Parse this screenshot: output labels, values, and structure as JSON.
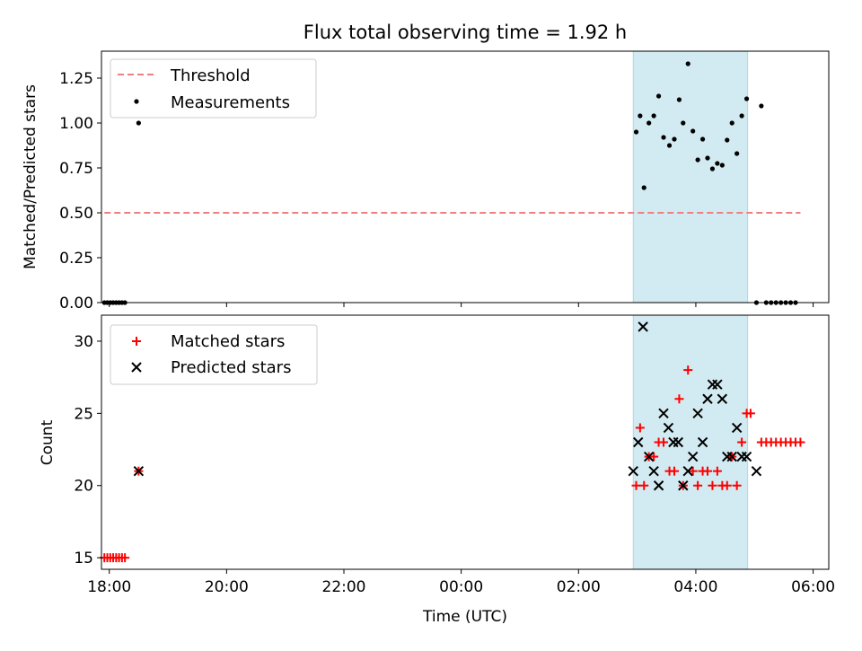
{
  "chart_data": [
    {
      "type": "scatter",
      "title": "Flux total observing time = 1.92 h",
      "ylabel": "Matched/Predicted stars",
      "xlabel": "",
      "ylim": [
        0,
        1.4
      ],
      "xlim": [
        "17:52",
        "06:16"
      ],
      "yticks": [
        0.0,
        0.25,
        0.5,
        0.75,
        1.0,
        1.25
      ],
      "ytick_labels": [
        "0.00",
        "0.25",
        "0.50",
        "0.75",
        "1.00",
        "1.25"
      ],
      "legend_position": "top-left",
      "grid": false,
      "shaded_band": {
        "x": [
          "02:56",
          "04:53"
        ],
        "color": "#add8e6"
      },
      "series": [
        {
          "name": "Threshold",
          "kind": "dashed-line",
          "color": "#f08080",
          "x": [
            "17:55",
            "05:47"
          ],
          "y": [
            0.5,
            0.5
          ]
        },
        {
          "name": "Measurements",
          "kind": "points",
          "color": "#000000",
          "x": [
            "17:55",
            "17:58",
            "18:01",
            "18:04",
            "18:07",
            "18:10",
            "18:13",
            "18:16",
            "18:30",
            "02:59",
            "03:03",
            "03:07",
            "03:12",
            "03:17",
            "03:22",
            "03:27",
            "03:33",
            "03:38",
            "03:43",
            "03:47",
            "03:52",
            "03:57",
            "04:02",
            "04:07",
            "04:12",
            "04:17",
            "04:22",
            "04:27",
            "04:32",
            "04:37",
            "04:42",
            "04:47",
            "04:52",
            "05:02",
            "05:07",
            "05:12",
            "05:17",
            "05:22",
            "05:27",
            "05:32",
            "05:37",
            "05:42"
          ],
          "y": [
            0,
            0,
            0,
            0,
            0,
            0,
            0,
            0,
            1.0,
            0.95,
            1.04,
            0.64,
            1.0,
            1.04,
            1.15,
            0.92,
            0.875,
            0.91,
            1.13,
            1.0,
            1.33,
            0.955,
            0.795,
            0.91,
            0.805,
            0.745,
            0.775,
            0.765,
            0.905,
            1.0,
            0.83,
            1.04,
            1.135,
            0,
            1.095,
            0,
            0,
            0,
            0,
            0,
            0,
            0
          ]
        }
      ]
    },
    {
      "type": "scatter",
      "title": "",
      "ylabel": "Count",
      "xlabel": "Time (UTC)",
      "ylim": [
        14.2,
        31.8
      ],
      "xlim": [
        "17:52",
        "06:16"
      ],
      "yticks": [
        15,
        20,
        25,
        30
      ],
      "ytick_labels": [
        "15",
        "20",
        "25",
        "30"
      ],
      "xtick_labels": [
        "18:00",
        "20:00",
        "22:00",
        "00:00",
        "02:00",
        "04:00",
        "06:00"
      ],
      "legend_position": "top-left",
      "grid": false,
      "shaded_band": {
        "x": [
          "02:56",
          "04:53"
        ],
        "color": "#add8e6"
      },
      "series": [
        {
          "name": "Matched stars",
          "marker": "plus",
          "color": "#ff0000",
          "x": [
            "17:55",
            "17:58",
            "18:01",
            "18:04",
            "18:07",
            "18:10",
            "18:13",
            "18:16",
            "18:30",
            "02:59",
            "03:03",
            "03:07",
            "03:12",
            "03:17",
            "03:22",
            "03:27",
            "03:33",
            "03:38",
            "03:43",
            "03:47",
            "03:52",
            "03:57",
            "04:02",
            "04:07",
            "04:12",
            "04:17",
            "04:22",
            "04:27",
            "04:32",
            "04:37",
            "04:42",
            "04:47",
            "04:52",
            "04:56",
            "05:07",
            "05:12",
            "05:17",
            "05:22",
            "05:27",
            "05:32",
            "05:37",
            "05:42",
            "05:47"
          ],
          "y": [
            15,
            15,
            15,
            15,
            15,
            15,
            15,
            15,
            21,
            20,
            24,
            20,
            22,
            22,
            23,
            23,
            21,
            21,
            26,
            20,
            28,
            21,
            20,
            21,
            21,
            20,
            21,
            20,
            20,
            22,
            20,
            23,
            25,
            25,
            23,
            23,
            23,
            23,
            23,
            23,
            23,
            23,
            23
          ]
        },
        {
          "name": "Predicted stars",
          "marker": "x",
          "color": "#000000",
          "x": [
            "18:30",
            "02:56",
            "03:01",
            "03:06",
            "03:12",
            "03:17",
            "03:22",
            "03:27",
            "03:32",
            "03:37",
            "03:42",
            "03:47",
            "03:52",
            "03:57",
            "04:02",
            "04:07",
            "04:12",
            "04:17",
            "04:22",
            "04:27",
            "04:32",
            "04:37",
            "04:42",
            "04:47",
            "04:52",
            "05:02"
          ],
          "y": [
            21,
            21,
            23,
            31,
            22,
            21,
            20,
            25,
            24,
            23,
            23,
            20,
            21,
            22,
            25,
            23,
            26,
            27,
            27,
            26,
            22,
            22,
            24,
            22,
            22,
            21
          ]
        }
      ]
    }
  ]
}
